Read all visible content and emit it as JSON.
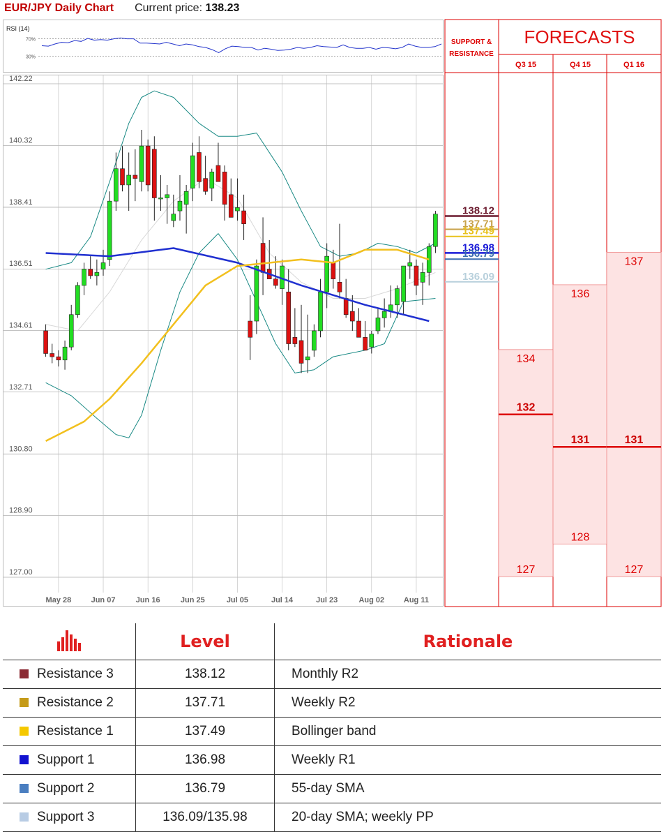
{
  "header": {
    "title": "EUR/JPY Daily Chart",
    "price_label": "Current price:",
    "price_value": "138.23"
  },
  "chart_data": [
    {
      "type": "line",
      "title": "RSI (14)",
      "ticks": [
        "70%",
        "30%"
      ],
      "ylim": [
        0,
        100
      ],
      "values": [
        54,
        53,
        58,
        62,
        61,
        66,
        64,
        71,
        67,
        68,
        67,
        70,
        72,
        70,
        70,
        60,
        60,
        59,
        58,
        62,
        58,
        54,
        58,
        56,
        52,
        50,
        45,
        38,
        47,
        53,
        52,
        50,
        50,
        44,
        48,
        46,
        43,
        44,
        46,
        50,
        48,
        50,
        54,
        52,
        51,
        50,
        56,
        50,
        48,
        48,
        50,
        46,
        50,
        49,
        47,
        50,
        58,
        53,
        50,
        50,
        52,
        58
      ],
      "color": "#2233cc"
    },
    {
      "type": "candlestick",
      "y_ticks": [
        "142.22",
        "140.32",
        "138.41",
        "136.51",
        "134.61",
        "132.71",
        "130.80",
        "128.90",
        "127.00"
      ],
      "ylim": [
        127.0,
        142.22
      ],
      "x_ticks": [
        {
          "label": "May 28",
          "i": 2
        },
        {
          "label": "Jun 07",
          "i": 9
        },
        {
          "label": "Jun 16",
          "i": 16
        },
        {
          "label": "Jun 25",
          "i": 23
        },
        {
          "label": "Jul 05",
          "i": 30
        },
        {
          "label": "Jul 14",
          "i": 37
        },
        {
          "label": "Jul 23",
          "i": 44
        },
        {
          "label": "Aug 02",
          "i": 51
        },
        {
          "label": "Aug 11",
          "i": 58
        }
      ],
      "candles": [
        [
          134.6,
          134.8,
          133.8,
          133.9
        ],
        [
          133.9,
          134.2,
          133.6,
          133.8
        ],
        [
          133.8,
          134.0,
          133.5,
          133.7
        ],
        [
          133.7,
          134.3,
          133.4,
          134.1
        ],
        [
          134.1,
          135.4,
          134.0,
          135.1
        ],
        [
          135.1,
          136.1,
          135.0,
          136.0
        ],
        [
          136.0,
          136.7,
          135.7,
          136.5
        ],
        [
          136.5,
          136.9,
          136.2,
          136.3
        ],
        [
          136.3,
          136.8,
          136.0,
          136.4
        ],
        [
          136.5,
          137.1,
          136.3,
          136.7
        ],
        [
          136.8,
          138.9,
          136.6,
          138.6
        ],
        [
          138.6,
          140.1,
          138.3,
          139.6
        ],
        [
          139.6,
          140.3,
          138.9,
          139.1
        ],
        [
          139.1,
          140.1,
          138.3,
          139.4
        ],
        [
          139.4,
          140.2,
          138.6,
          139.3
        ],
        [
          139.2,
          140.8,
          138.9,
          140.3
        ],
        [
          140.3,
          140.5,
          138.9,
          139.1
        ],
        [
          140.2,
          140.6,
          138.0,
          138.7
        ],
        [
          138.7,
          139.4,
          138.3,
          138.7
        ],
        [
          138.7,
          139.1,
          137.9,
          138.8
        ],
        [
          138.0,
          138.8,
          137.8,
          138.2
        ],
        [
          138.3,
          139.4,
          138.0,
          138.6
        ],
        [
          138.5,
          139.1,
          137.6,
          138.9
        ],
        [
          139.0,
          140.4,
          138.6,
          140.0
        ],
        [
          140.1,
          140.6,
          139.0,
          139.2
        ],
        [
          139.3,
          140.0,
          138.8,
          138.9
        ],
        [
          139.0,
          139.6,
          138.6,
          139.5
        ],
        [
          139.7,
          140.4,
          139.2,
          139.2
        ],
        [
          139.5,
          139.7,
          138.0,
          138.5
        ],
        [
          138.8,
          139.3,
          138.1,
          138.1
        ],
        [
          138.3,
          139.3,
          138.0,
          138.4
        ],
        [
          138.3,
          138.8,
          137.4,
          137.9
        ],
        [
          134.9,
          135.7,
          133.7,
          134.4
        ],
        [
          134.9,
          136.8,
          134.5,
          136.6
        ],
        [
          137.3,
          138.1,
          135.7,
          136.4
        ],
        [
          136.5,
          137.4,
          136.2,
          136.2
        ],
        [
          136.2,
          136.9,
          135.9,
          136.0
        ],
        [
          135.9,
          136.8,
          135.4,
          136.6
        ],
        [
          135.8,
          136.5,
          134.0,
          134.2
        ],
        [
          134.4,
          135.3,
          134.1,
          134.2
        ],
        [
          134.3,
          135.4,
          133.3,
          133.6
        ],
        [
          133.7,
          135.1,
          133.3,
          133.8
        ],
        [
          134.0,
          134.8,
          133.8,
          134.6
        ],
        [
          134.6,
          136.2,
          134.4,
          135.8
        ],
        [
          135.8,
          137.3,
          135.3,
          136.9
        ],
        [
          136.7,
          137.1,
          135.9,
          136.2
        ],
        [
          136.1,
          137.9,
          135.6,
          135.8
        ],
        [
          135.6,
          136.2,
          135.0,
          135.1
        ],
        [
          135.2,
          135.7,
          134.6,
          134.9
        ],
        [
          134.9,
          135.3,
          134.5,
          134.4
        ],
        [
          134.4,
          134.9,
          134.0,
          134.0
        ],
        [
          134.1,
          134.6,
          133.9,
          134.5
        ],
        [
          134.6,
          135.3,
          134.5,
          135.0
        ],
        [
          135.0,
          135.6,
          134.7,
          135.2
        ],
        [
          135.2,
          136.0,
          135.0,
          135.4
        ],
        [
          135.4,
          136.0,
          135.0,
          135.9
        ],
        [
          135.5,
          136.6,
          135.1,
          136.6
        ],
        [
          136.6,
          137.1,
          136.2,
          136.7
        ],
        [
          136.6,
          136.8,
          135.7,
          136.0
        ],
        [
          136.1,
          136.7,
          135.4,
          136.4
        ],
        [
          136.4,
          137.3,
          136.0,
          137.2
        ],
        [
          137.2,
          138.3,
          137.0,
          138.2
        ]
      ],
      "levels": [
        {
          "value": 138.12,
          "label": "138.12",
          "color": "#6b1a2e",
          "width": 2.5
        },
        {
          "value": 137.71,
          "label": "137.71",
          "color": "#c8a24a",
          "width": 2
        },
        {
          "value": 137.49,
          "label": "137.49",
          "color": "#e8c21c",
          "width": 2
        },
        {
          "value": 136.98,
          "label": "136.98",
          "color": "#1a1ad8",
          "width": 2.5
        },
        {
          "value": 136.79,
          "label": "136.79",
          "color": "#3a6db0",
          "width": 2
        },
        {
          "value": 136.09,
          "label": "136.09",
          "color": "#b8d0dc",
          "width": 2
        }
      ],
      "sma_slow": [
        [
          0,
          137.0
        ],
        [
          10,
          136.9
        ],
        [
          20,
          137.15
        ],
        [
          30,
          136.7
        ],
        [
          40,
          136.0
        ],
        [
          50,
          135.4
        ],
        [
          60,
          134.9
        ]
      ],
      "sma_fast": [
        [
          0,
          131.2
        ],
        [
          6,
          131.8
        ],
        [
          10,
          132.5
        ],
        [
          15,
          133.6
        ],
        [
          20,
          134.8
        ],
        [
          25,
          136.0
        ],
        [
          30,
          136.6
        ],
        [
          40,
          136.8
        ],
        [
          45,
          136.7
        ],
        [
          50,
          137.1
        ],
        [
          55,
          137.1
        ],
        [
          60,
          136.8
        ]
      ],
      "bb_upper": [
        [
          0,
          136.5
        ],
        [
          4,
          136.7
        ],
        [
          7,
          137.5
        ],
        [
          10,
          139.2
        ],
        [
          13,
          141.0
        ],
        [
          15,
          141.8
        ],
        [
          17,
          142.0
        ],
        [
          20,
          141.8
        ],
        [
          24,
          141.0
        ],
        [
          27,
          140.6
        ],
        [
          30,
          140.6
        ],
        [
          33,
          140.7
        ],
        [
          37,
          139.5
        ],
        [
          40,
          138.3
        ],
        [
          43,
          137.2
        ],
        [
          46,
          136.9
        ],
        [
          49,
          137.0
        ],
        [
          52,
          137.3
        ],
        [
          55,
          137.2
        ],
        [
          58,
          137.0
        ],
        [
          61,
          137.3
        ]
      ],
      "bb_lower": [
        [
          0,
          133.0
        ],
        [
          4,
          132.6
        ],
        [
          8,
          131.9
        ],
        [
          11,
          131.4
        ],
        [
          13,
          131.3
        ],
        [
          15,
          132.0
        ],
        [
          18,
          134.0
        ],
        [
          21,
          135.8
        ],
        [
          24,
          137.0
        ],
        [
          27,
          137.6
        ],
        [
          30,
          136.8
        ],
        [
          33,
          135.5
        ],
        [
          36,
          134.2
        ],
        [
          39,
          133.3
        ],
        [
          42,
          133.4
        ],
        [
          45,
          133.8
        ],
        [
          50,
          134.0
        ],
        [
          53,
          134.2
        ],
        [
          56,
          135.5
        ],
        [
          61,
          135.6
        ]
      ],
      "bb_mid": [
        [
          0,
          134.8
        ],
        [
          5,
          134.6
        ],
        [
          10,
          135.8
        ],
        [
          15,
          137.4
        ],
        [
          20,
          138.6
        ],
        [
          25,
          139.3
        ],
        [
          30,
          138.7
        ],
        [
          35,
          137.0
        ],
        [
          40,
          136.1
        ],
        [
          45,
          135.6
        ],
        [
          50,
          135.6
        ],
        [
          55,
          135.9
        ],
        [
          61,
          136.4
        ]
      ]
    }
  ],
  "side": {
    "sr_label_1": "SUPPORT &",
    "sr_label_2": "RESISTANCE",
    "forecasts_title": "FORECASTS",
    "columns": [
      {
        "label": "Q3 15",
        "high": "134",
        "mid": "132",
        "low": "127",
        "v_high": 134,
        "v_mid": 132,
        "v_low": 127
      },
      {
        "label": "Q4 15",
        "high": "136",
        "mid": "131",
        "low": "128",
        "v_high": 136,
        "v_mid": 131,
        "v_low": 128
      },
      {
        "label": "Q1 16",
        "high": "137",
        "mid": "131",
        "low": "127",
        "v_high": 137,
        "v_mid": 131,
        "v_low": 127
      }
    ]
  },
  "table": {
    "headers": {
      "level": "Level",
      "rationale": "Rationale"
    },
    "rows": [
      {
        "name": "Resistance 3",
        "level": "138.12",
        "rationale": "Monthly R2",
        "color": "#8b2a33"
      },
      {
        "name": "Resistance 2",
        "level": "137.71",
        "rationale": "Weekly R2",
        "color": "#c59b19"
      },
      {
        "name": "Resistance 1",
        "level": "137.49",
        "rationale": "Bollinger band",
        "color": "#f5c800"
      },
      {
        "name": "Support 1",
        "level": "136.98",
        "rationale": "Weekly R1",
        "color": "#1212d0"
      },
      {
        "name": "Support 2",
        "level": "136.79",
        "rationale": "55-day SMA",
        "color": "#4a7ec0"
      },
      {
        "name": "Support 3",
        "level": "136.09/135.98",
        "rationale": "20-day SMA; weekly PP",
        "color": "#b8cce4"
      }
    ]
  }
}
